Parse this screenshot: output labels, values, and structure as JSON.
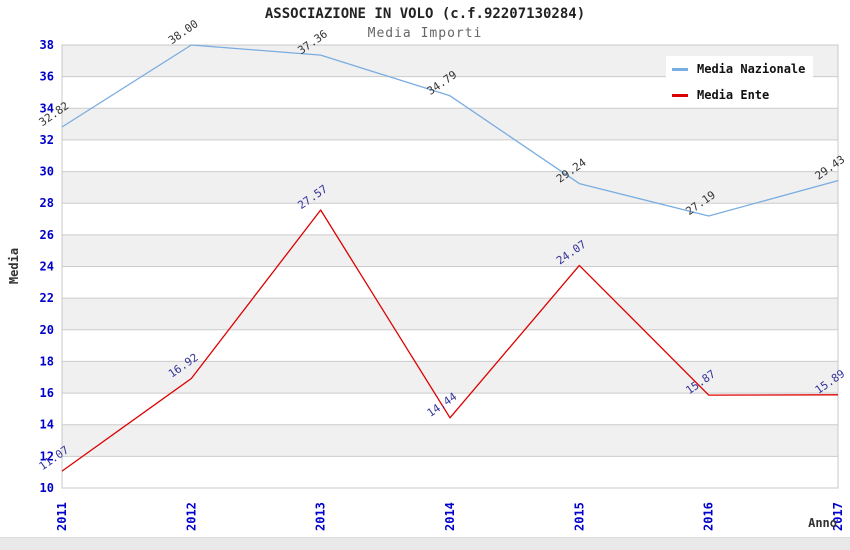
{
  "header": {
    "title": "ASSOCIAZIONE IN VOLO (c.f.92207130284)",
    "subtitle": "Media Importi"
  },
  "chart_data": {
    "type": "line",
    "title": "ASSOCIAZIONE IN VOLO (c.f.92207130284)",
    "subtitle": "Media Importi",
    "xlabel": "Anno",
    "ylabel": "Media",
    "x": [
      "2011",
      "2012",
      "2013",
      "2014",
      "2015",
      "2016",
      "2017"
    ],
    "series": [
      {
        "name": "Media Nazionale",
        "color": "#7aade0",
        "label_color": "#333333",
        "values": [
          32.82,
          38.0,
          37.36,
          34.79,
          29.24,
          27.19,
          29.43
        ]
      },
      {
        "name": "Media Ente",
        "color": "#dd0000",
        "label_color": "#333399",
        "values": [
          11.07,
          16.92,
          27.57,
          14.44,
          24.07,
          15.87,
          15.89
        ]
      }
    ],
    "ylim": [
      10,
      38
    ],
    "ytick_step": 2,
    "grid": true,
    "legend_position": "top-right",
    "style": {
      "band_fill": "#f0f0f0",
      "grid_color": "#cccccc",
      "border_color": "#c8c8c8",
      "tick_label_color": "#0000cc",
      "axis_title_color": "#333333",
      "label_rotation_deg": -35,
      "xtick_rotation_deg": -90
    }
  }
}
